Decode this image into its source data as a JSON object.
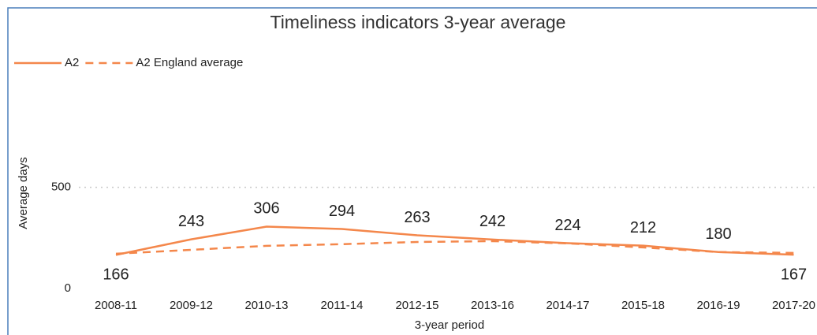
{
  "chart_data": {
    "type": "line",
    "title": "Timeliness indicators 3-year average",
    "x_label": "3-year period",
    "y_label": "Average days",
    "categories": [
      "2008-11",
      "2009-12",
      "2010-13",
      "2011-14",
      "2012-15",
      "2013-16",
      "2014-17",
      "2015-18",
      "2016-19",
      "2017-20"
    ],
    "series": [
      {
        "name": "A2",
        "color": "#f4874b",
        "line_style": "solid",
        "label_color": "#f08cbd",
        "values": [
          166,
          243,
          306,
          294,
          263,
          242,
          224,
          212,
          180,
          167
        ]
      },
      {
        "name": "A2 England average",
        "color": "#f4874b",
        "line_style": "dashed",
        "values": [
          172,
          191,
          211,
          219,
          230,
          234,
          223,
          203,
          180,
          176
        ]
      }
    ],
    "ylim": [
      0,
      600
    ],
    "yticks": [
      0,
      500
    ],
    "grid": true,
    "legend": "top-left"
  }
}
